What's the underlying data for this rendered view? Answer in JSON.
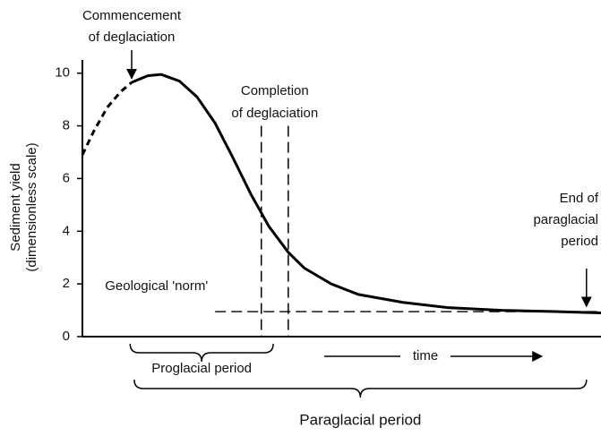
{
  "chart_data": {
    "type": "line",
    "ylabel": [
      "Sediment yield",
      "(dimensionless scale)"
    ],
    "xlabel": "time",
    "ylim": [
      0,
      10.5
    ],
    "yticks": [
      0,
      2,
      4,
      6,
      8,
      10
    ],
    "xlim": [
      0,
      100
    ],
    "series": [
      {
        "dashed": true,
        "x": [
          0,
          2.2,
          4.8,
          7.4,
          9.5
        ],
        "values": [
          6.9,
          7.8,
          8.7,
          9.3,
          9.65
        ]
      },
      {
        "dashed": false,
        "x": [
          9.5,
          12.6,
          15.2,
          18.7,
          22.1,
          25.6,
          29,
          32.5,
          34.5,
          35.9,
          39.7,
          42.8,
          48,
          53.2,
          61.8,
          70.5,
          80.8,
          91.2,
          100
        ],
        "values": [
          9.65,
          9.9,
          9.95,
          9.7,
          9.1,
          8.1,
          6.8,
          5.4,
          4.7,
          4.2,
          3.2,
          2.6,
          2.0,
          1.6,
          1.3,
          1.1,
          1.0,
          0.95,
          0.9
        ]
      }
    ],
    "norm": {
      "label": "Geological 'norm'",
      "y": 0.95,
      "x_from": 25.6
    },
    "completion": {
      "label": [
        "Completion",
        "of deglaciation"
      ],
      "x": [
        34.5,
        39.7
      ],
      "top": 8
    },
    "commencement": {
      "label": [
        "Commencement",
        "of deglaciation"
      ],
      "x": 9.5,
      "y": 9.8
    },
    "end": {
      "label": [
        "End of",
        "paraglacial",
        "period"
      ],
      "x": 97.2,
      "y": 1.15
    },
    "periods": [
      {
        "label": "Proglacial period",
        "x": [
          9.2,
          36.8
        ]
      },
      {
        "label": "Paraglacial period",
        "x": [
          10,
          97.2
        ]
      }
    ]
  }
}
